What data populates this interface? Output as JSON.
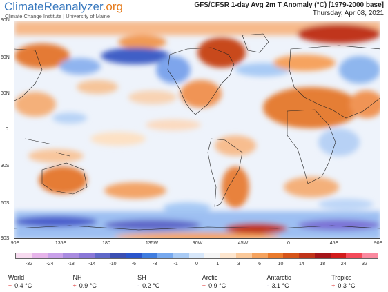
{
  "brand": {
    "name_main": "ClimateReanalyzer",
    "name_suffix": ".org",
    "subtitle": "Climate Change Institute | University of Maine"
  },
  "map": {
    "title": "GFS/CFSR 1-day Avg 2m T Anomaly (°C) [1979-2000 base]",
    "date": "Thursday, Apr 08, 2021",
    "lat_labels": [
      "90N",
      "60N",
      "30N",
      "0",
      "30S",
      "60S",
      "90S"
    ],
    "lon_labels": [
      "90E",
      "135E",
      "180",
      "135W",
      "90W",
      "45W",
      "0",
      "45E",
      "90E"
    ]
  },
  "colorbar": {
    "colors": [
      "#f7dbf0",
      "#e6b4ea",
      "#c9a1ea",
      "#a98be0",
      "#8a78d8",
      "#5f68c9",
      "#3b4fb3",
      "#2a55cc",
      "#3f7de0",
      "#77a9ef",
      "#a9cbf5",
      "#d7e7fa",
      "#f5f5f5",
      "#fde6cf",
      "#fbc99a",
      "#f6a35e",
      "#ea7a2c",
      "#d65419",
      "#c0341a",
      "#a5151a",
      "#d21b1b",
      "#f44a5a",
      "#fb8aa0"
    ],
    "labels": [
      "-32",
      "-24",
      "-18",
      "-14",
      "-10",
      "-6",
      "-3",
      "-1",
      "0",
      "1",
      "3",
      "6",
      "10",
      "14",
      "18",
      "24",
      "32"
    ]
  },
  "stats": [
    {
      "name": "World",
      "sign": "+",
      "value": "0.4 °C"
    },
    {
      "name": "NH",
      "sign": "+",
      "value": "0.9 °C"
    },
    {
      "name": "SH",
      "sign": "-",
      "value": "0.2 °C"
    },
    {
      "name": "Arctic",
      "sign": "+",
      "value": "0.9 °C"
    },
    {
      "name": "Antarctic",
      "sign": "-",
      "value": "3.1 °C"
    },
    {
      "name": "Tropics",
      "sign": "+",
      "value": "0.3 °C"
    }
  ]
}
